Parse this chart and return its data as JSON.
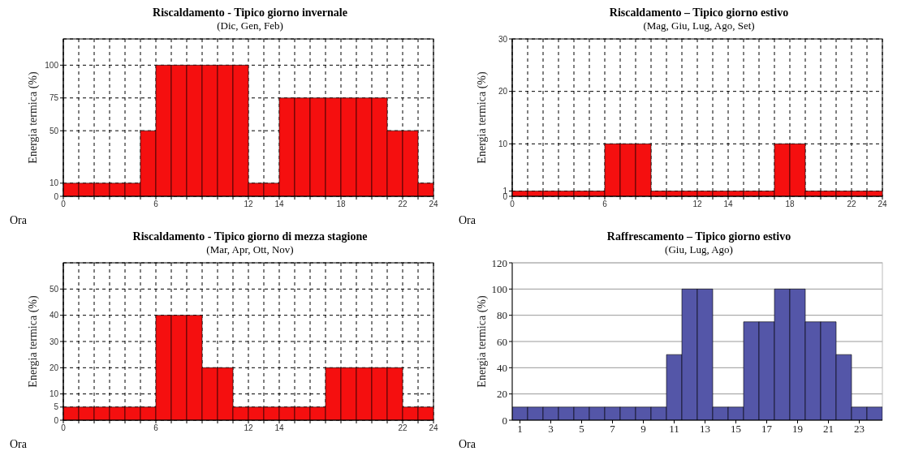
{
  "chart_data": [
    {
      "type": "histogram",
      "title": "Riscaldamento - Tipico giorno invernale",
      "subtitle": "(Dic, Gen, Feb)",
      "xlabel": "Ora",
      "ylabel": "Energia termica (%)",
      "color": "#f50f0f",
      "bins": [
        0,
        1,
        2,
        3,
        4,
        5,
        6,
        7,
        8,
        9,
        10,
        11,
        12,
        13,
        14,
        15,
        16,
        17,
        18,
        19,
        20,
        21,
        22,
        23,
        24
      ],
      "values": [
        10,
        10,
        10,
        10,
        10,
        50,
        100,
        100,
        100,
        100,
        100,
        100,
        10,
        10,
        75,
        75,
        75,
        75,
        75,
        75,
        75,
        50,
        50,
        10
      ],
      "xlim": [
        0,
        24
      ],
      "xticks": [
        0,
        {
          "value": 1,
          "label": null
        },
        {
          "value": 2,
          "label": null
        },
        {
          "value": 3,
          "label": null
        },
        {
          "value": 4,
          "label": null
        },
        {
          "value": 5,
          "label": null
        },
        6,
        {
          "value": 7,
          "label": null
        },
        {
          "value": 8,
          "label": null
        },
        {
          "value": 9,
          "label": null
        },
        {
          "value": 10,
          "label": null
        },
        {
          "value": 11,
          "label": null
        },
        12,
        {
          "value": 13,
          "label": null
        },
        14,
        {
          "value": 15,
          "label": null
        },
        {
          "value": 16,
          "label": null
        },
        {
          "value": 17,
          "label": null
        },
        18,
        {
          "value": 19,
          "label": null
        },
        {
          "value": 20,
          "label": null
        },
        {
          "value": 21,
          "label": null
        },
        22,
        {
          "value": 23,
          "label": null
        },
        24
      ],
      "ylim": [
        0,
        120
      ],
      "yticks": [
        0,
        10,
        50,
        75,
        100
      ],
      "grid": true
    },
    {
      "type": "histogram",
      "title": "Riscaldamento – Tipico giorno estivo",
      "subtitle": "(Mag, Giu, Lug, Ago, Set)",
      "xlabel": "Ora",
      "ylabel": "Energia termica (%)",
      "color": "#f50f0f",
      "bins": [
        0,
        1,
        2,
        3,
        4,
        5,
        6,
        7,
        8,
        9,
        10,
        11,
        12,
        13,
        14,
        15,
        16,
        17,
        18,
        19,
        20,
        21,
        22,
        23,
        24
      ],
      "values": [
        1,
        1,
        1,
        1,
        1,
        1,
        10,
        10,
        10,
        1,
        1,
        1,
        1,
        1,
        1,
        1,
        1,
        10,
        10,
        1,
        1,
        1,
        1,
        1
      ],
      "xlim": [
        0,
        24
      ],
      "xticks": [
        0,
        {
          "value": 1,
          "label": null
        },
        {
          "value": 2,
          "label": null
        },
        {
          "value": 3,
          "label": null
        },
        {
          "value": 4,
          "label": null
        },
        {
          "value": 5,
          "label": null
        },
        6,
        {
          "value": 7,
          "label": null
        },
        {
          "value": 8,
          "label": null
        },
        {
          "value": 9,
          "label": null
        },
        {
          "value": 10,
          "label": null
        },
        {
          "value": 11,
          "label": null
        },
        12,
        {
          "value": 13,
          "label": null
        },
        14,
        {
          "value": 15,
          "label": null
        },
        {
          "value": 16,
          "label": null
        },
        {
          "value": 17,
          "label": null
        },
        18,
        {
          "value": 19,
          "label": null
        },
        {
          "value": 20,
          "label": null
        },
        {
          "value": 21,
          "label": null
        },
        22,
        {
          "value": 23,
          "label": null
        },
        24
      ],
      "ylim": [
        0,
        30
      ],
      "yticks": [
        0,
        1,
        10,
        20,
        30
      ],
      "grid": true
    },
    {
      "type": "histogram",
      "title": "Riscaldamento - Tipico giorno di mezza stagione",
      "subtitle": "(Mar, Apr, Ott, Nov)",
      "xlabel": "Ora",
      "ylabel": "Energia termica (%)",
      "color": "#f50f0f",
      "bins": [
        0,
        1,
        2,
        3,
        4,
        5,
        6,
        7,
        8,
        9,
        10,
        11,
        12,
        13,
        14,
        15,
        16,
        17,
        18,
        19,
        20,
        21,
        22,
        23,
        24
      ],
      "values": [
        5,
        5,
        5,
        5,
        5,
        5,
        40,
        40,
        40,
        20,
        20,
        5,
        5,
        5,
        5,
        5,
        5,
        20,
        20,
        20,
        20,
        20,
        5,
        5
      ],
      "xlim": [
        0,
        24
      ],
      "xticks": [
        0,
        {
          "value": 1,
          "label": null
        },
        {
          "value": 2,
          "label": null
        },
        {
          "value": 3,
          "label": null
        },
        {
          "value": 4,
          "label": null
        },
        {
          "value": 5,
          "label": null
        },
        6,
        {
          "value": 7,
          "label": null
        },
        {
          "value": 8,
          "label": null
        },
        {
          "value": 9,
          "label": null
        },
        {
          "value": 10,
          "label": null
        },
        {
          "value": 11,
          "label": null
        },
        12,
        {
          "value": 13,
          "label": null
        },
        14,
        {
          "value": 15,
          "label": null
        },
        {
          "value": 16,
          "label": null
        },
        {
          "value": 17,
          "label": null
        },
        {
          "value": 18,
          "label": null
        },
        {
          "value": 19,
          "label": null
        },
        {
          "value": 20,
          "label": null
        },
        {
          "value": 21,
          "label": null
        },
        22,
        {
          "value": 23,
          "label": null
        },
        24
      ],
      "ylim": [
        0,
        60
      ],
      "yticks": [
        0,
        5,
        10,
        20,
        30,
        40,
        50
      ],
      "grid": true
    },
    {
      "type": "bar",
      "title": "Raffrescamento – Tipico giorno estivo",
      "subtitle": "(Giu, Lug, Ago)",
      "xlabel": "Ora",
      "ylabel": "Energia termica (%)",
      "color": "#5456a8",
      "x": [
        1,
        2,
        3,
        4,
        5,
        6,
        7,
        8,
        9,
        10,
        11,
        12,
        13,
        14,
        15,
        16,
        17,
        18,
        19,
        20,
        21,
        22,
        23,
        24
      ],
      "xlim": [
        0.5,
        24.5
      ],
      "xticks": [
        1,
        3,
        5,
        7,
        9,
        11,
        13,
        15,
        17,
        19,
        21,
        23
      ],
      "values": [
        10,
        10,
        10,
        10,
        10,
        10,
        10,
        10,
        10,
        10,
        50,
        100,
        100,
        10,
        10,
        75,
        75,
        100,
        100,
        75,
        75,
        50,
        10,
        10
      ],
      "ylim": [
        0,
        120
      ],
      "yticks": [
        0,
        20,
        40,
        60,
        80,
        100,
        120
      ],
      "grid": "y"
    }
  ]
}
